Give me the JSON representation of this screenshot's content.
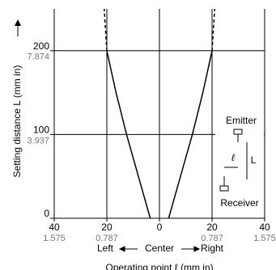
{
  "chart_data": {
    "type": "line",
    "xlabel_sides": [
      "Left",
      "Center",
      "Right"
    ],
    "xlabel": "Operating point ℓ (mm in)",
    "ylabel": "Setting distance L (mm in)",
    "xlim": [
      -40,
      40
    ],
    "ylim": [
      0,
      250
    ],
    "xticks": [
      {
        "value": -40,
        "label": "40"
      },
      {
        "value": -20,
        "label": "20"
      },
      {
        "value": 0,
        "label": "0"
      },
      {
        "value": 20,
        "label": "20"
      },
      {
        "value": 40,
        "label": "40"
      }
    ],
    "xticks_in": [
      {
        "value": -40,
        "label": "1.575"
      },
      {
        "value": -20,
        "label": "0.787"
      },
      {
        "value": 20,
        "label": "0.787"
      },
      {
        "value": 40,
        "label": "1.575"
      }
    ],
    "yticks": [
      0,
      100,
      200
    ],
    "yticks_in": [
      {
        "value": 100,
        "label": "3.937"
      },
      {
        "value": 200,
        "label": "7.874"
      }
    ],
    "grid": true,
    "series": [
      {
        "color": "#000000",
        "style": "solid",
        "x": [
          -3.5,
          -8,
          -12.5,
          -16.5,
          -20
        ],
        "values": [
          0,
          50,
          100,
          150,
          200
        ]
      },
      {
        "color": "#000000",
        "style": "dashed",
        "x": [
          -20,
          -21
        ],
        "values": [
          200,
          250
        ]
      },
      {
        "color": "#000000",
        "style": "solid",
        "x": [
          3.5,
          8,
          12.5,
          16.5,
          20
        ],
        "values": [
          0,
          50,
          100,
          150,
          200
        ]
      },
      {
        "color": "#000000",
        "style": "dashed",
        "x": [
          20,
          21
        ],
        "values": [
          200,
          250
        ]
      }
    ],
    "inset": {
      "emitter": "Emitter",
      "receiver": "Receiver",
      "l": "ℓ",
      "L": "L"
    }
  }
}
